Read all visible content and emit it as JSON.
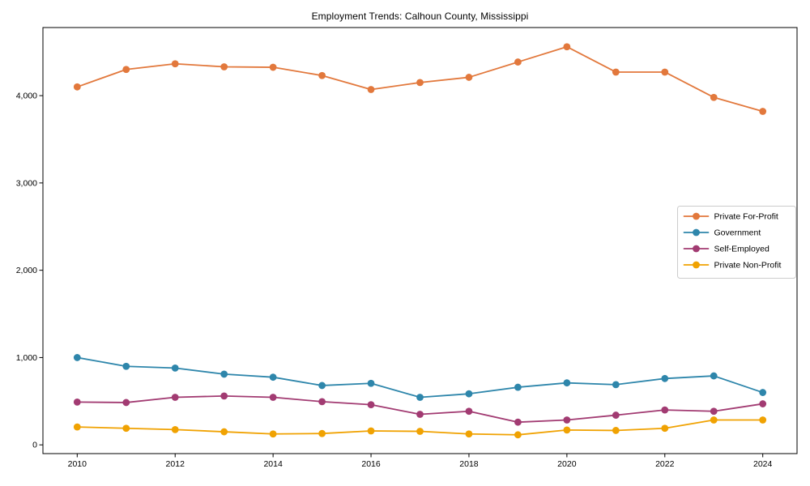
{
  "page": {
    "title": "Employment Trends: Calhoun County, Mississippi"
  },
  "chart_data": {
    "type": "line",
    "title": "Employment Trends: Calhoun County, Mississippi",
    "xlabel": "",
    "ylabel": "",
    "x": [
      2010,
      2011,
      2012,
      2013,
      2014,
      2015,
      2016,
      2017,
      2018,
      2019,
      2020,
      2021,
      2022,
      2023,
      2024
    ],
    "xlim": [
      2009.3,
      2024.7
    ],
    "ylim": [
      -100,
      4780
    ],
    "x_ticks": [
      2010,
      2012,
      2014,
      2016,
      2018,
      2020,
      2022,
      2024
    ],
    "x_tick_labels": [
      "2010",
      "2012",
      "2014",
      "2016",
      "2018",
      "2020",
      "2022",
      "2024"
    ],
    "y_ticks": [
      0,
      1000,
      2000,
      3000,
      4000
    ],
    "y_tick_labels": [
      "0",
      "1,000",
      "2,000",
      "3,000",
      "4,000"
    ],
    "grid": false,
    "legend": {
      "position": "center-right",
      "border_color": "#cccccc",
      "background": "#ffffff"
    },
    "series": [
      {
        "name": "Private For-Profit",
        "color": "#E2783C",
        "values": [
          4100,
          4300,
          4365,
          4330,
          4325,
          4230,
          4070,
          4150,
          4210,
          4385,
          4560,
          4270,
          4270,
          3980,
          3820
        ]
      },
      {
        "name": "Government",
        "color": "#2E86AB",
        "values": [
          1000,
          900,
          880,
          810,
          775,
          680,
          705,
          545,
          585,
          660,
          710,
          690,
          760,
          790,
          600
        ]
      },
      {
        "name": "Self-Employed",
        "color": "#A23B72",
        "values": [
          490,
          485,
          545,
          560,
          545,
          495,
          460,
          350,
          385,
          260,
          285,
          340,
          400,
          385,
          470
        ]
      },
      {
        "name": "Private Non-Profit",
        "color": "#F0A202",
        "values": [
          205,
          190,
          175,
          150,
          125,
          130,
          160,
          155,
          125,
          115,
          170,
          165,
          190,
          285,
          285
        ]
      }
    ]
  }
}
